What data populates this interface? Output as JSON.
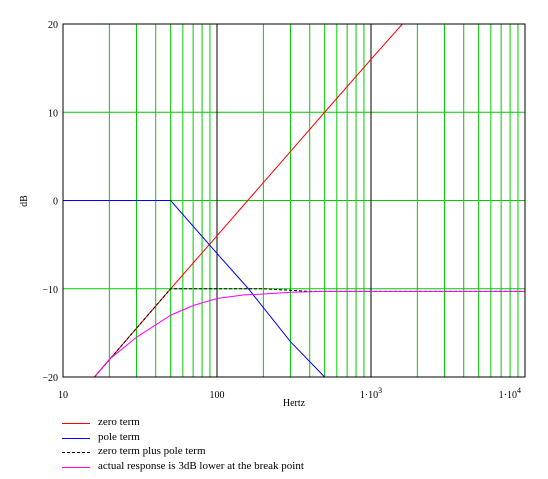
{
  "chart_data": {
    "type": "line",
    "xscale": "log",
    "xlim": [
      10,
      10000
    ],
    "ylim": [
      -20,
      20
    ],
    "xlabel": "Hertz",
    "ylabel": "dB",
    "grid": true,
    "xticks": [
      {
        "value": 10,
        "label": "10"
      },
      {
        "value": 100,
        "label": "100"
      },
      {
        "value": 1000,
        "label": "1·10",
        "exp": "3"
      },
      {
        "value": 10000,
        "label": "1·10",
        "exp": "4"
      }
    ],
    "yticks": [
      {
        "value": 20,
        "label": "20"
      },
      {
        "value": 10,
        "label": "10"
      },
      {
        "value": 0,
        "label": "0"
      },
      {
        "value": -10,
        "label": "−10"
      },
      {
        "value": -20,
        "label": "−20"
      }
    ],
    "series": [
      {
        "name": "zero term",
        "color": "#ff0000",
        "dash": "solid",
        "x": [
          16,
          50,
          100,
          500,
          1000,
          1600
        ],
        "y": [
          -20,
          -10,
          -4,
          10,
          16,
          20
        ]
      },
      {
        "name": "pole term",
        "color": "#0000ff",
        "dash": "solid",
        "x": [
          10,
          50,
          100,
          160,
          300,
          500
        ],
        "y": [
          0,
          0,
          -6,
          -10,
          -16,
          -20
        ]
      },
      {
        "name": "zero term plus pole term",
        "color": "#000000",
        "dash": "dashed",
        "x": [
          16,
          50,
          100,
          200,
          400,
          1000,
          10000
        ],
        "y": [
          -20,
          -10,
          -10,
          -10,
          -10.3,
          -10.3,
          -10.3
        ]
      },
      {
        "name": "actual response is 3dB lower at the break point",
        "color": "#ff00ff",
        "dash": "solid",
        "x": [
          16,
          20,
          30,
          50,
          70,
          100,
          150,
          200,
          300,
          500,
          1000,
          10000
        ],
        "y": [
          -20,
          -18,
          -15.5,
          -13,
          -11.9,
          -11.1,
          -10.7,
          -10.6,
          -10.4,
          -10.3,
          -10.3,
          -10.3
        ]
      }
    ]
  },
  "legend": {
    "items": [
      {
        "label": "zero term",
        "color": "#ff0000",
        "dash": "solid"
      },
      {
        "label": "pole term",
        "color": "#0000ff",
        "dash": "solid"
      },
      {
        "label": "zero term plus pole term",
        "color": "#000000",
        "dash": "dashed"
      },
      {
        "label": "actual response is 3dB lower at the break point",
        "color": "#ff00ff",
        "dash": "solid"
      }
    ]
  },
  "colors": {
    "grid": "#00cc00",
    "decade_line": "#000000",
    "frame": "#000000"
  }
}
